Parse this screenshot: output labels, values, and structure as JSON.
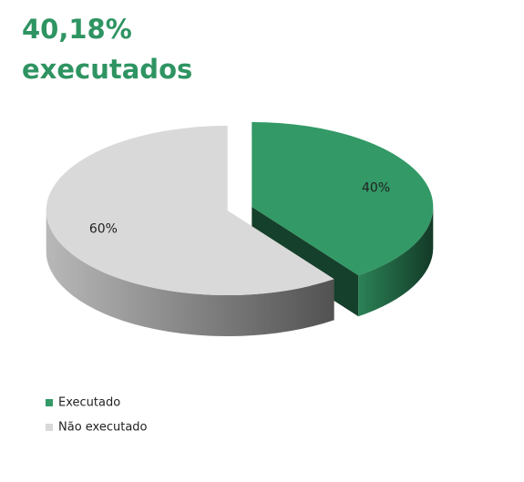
{
  "chart_data": {
    "type": "pie3d",
    "title_lines": [
      "40,18%",
      "executados"
    ],
    "categories": [
      "Executado",
      "Não executado"
    ],
    "values": [
      40,
      60
    ],
    "value_labels": [
      "40%",
      "60%"
    ],
    "colors": [
      "#339966",
      "#d9d9d9"
    ],
    "legend": "bottom-left"
  }
}
